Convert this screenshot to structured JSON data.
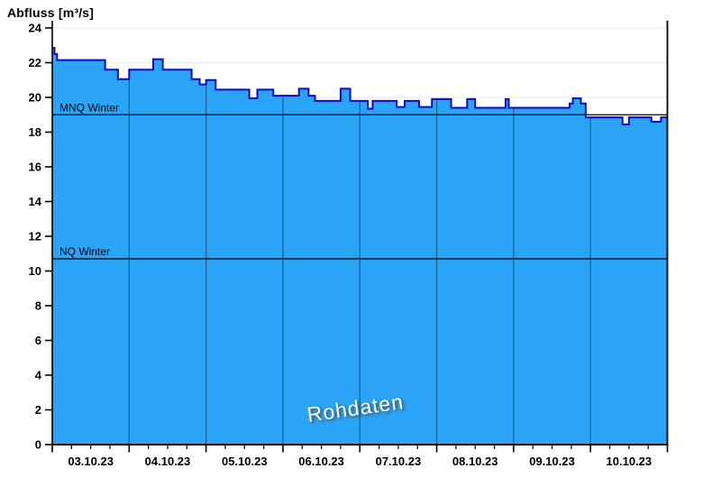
{
  "title": "Abfluss [m³/s]",
  "watermark": "Rohdaten",
  "chart_data": {
    "type": "area",
    "title": "Abfluss [m³/s]",
    "ylabel": "Abfluss [m³/s]",
    "xlabel": "",
    "ylim": [
      0,
      24
    ],
    "y_ticks": [
      0,
      2,
      4,
      6,
      8,
      10,
      12,
      14,
      16,
      18,
      20,
      22,
      24
    ],
    "x_day_labels": [
      "03.10.23",
      "04.10.23",
      "05.10.23",
      "06.10.23",
      "07.10.23",
      "08.10.23",
      "09.10.23",
      "10.10.23"
    ],
    "hours_total": 192,
    "minor_tick_hours": 6,
    "grid": true,
    "legend": false,
    "series": [
      {
        "name": "Abfluss Rohdaten",
        "unit": "m³/s",
        "step_points_hours_value": [
          [
            0,
            22.85
          ],
          [
            0.7,
            22.5
          ],
          [
            1.5,
            22.15
          ],
          [
            16.5,
            21.6
          ],
          [
            20.5,
            21.05
          ],
          [
            24,
            21.6
          ],
          [
            31.5,
            22.2
          ],
          [
            34.5,
            21.6
          ],
          [
            43.5,
            21.05
          ],
          [
            46,
            20.75
          ],
          [
            48,
            21.0
          ],
          [
            51,
            20.45
          ],
          [
            61.5,
            19.95
          ],
          [
            64,
            20.45
          ],
          [
            69,
            20.1
          ],
          [
            77,
            20.5
          ],
          [
            80,
            20.1
          ],
          [
            82,
            19.8
          ],
          [
            90,
            20.5
          ],
          [
            93,
            19.8
          ],
          [
            98.5,
            19.35
          ],
          [
            100,
            19.8
          ],
          [
            107.5,
            19.45
          ],
          [
            110,
            19.8
          ],
          [
            114.5,
            19.45
          ],
          [
            118.5,
            19.9
          ],
          [
            124.5,
            19.4
          ],
          [
            129.5,
            19.9
          ],
          [
            132,
            19.4
          ],
          [
            141.5,
            19.9
          ],
          [
            142.5,
            19.4
          ],
          [
            161.5,
            19.65
          ],
          [
            162.5,
            19.95
          ],
          [
            165,
            19.65
          ],
          [
            166.5,
            18.85
          ],
          [
            178,
            18.45
          ],
          [
            180,
            18.85
          ],
          [
            187,
            18.6
          ],
          [
            190,
            18.85
          ]
        ]
      }
    ],
    "reference_lines": [
      {
        "label": "MNQ Winter",
        "value": 19.0
      },
      {
        "label": "NQ Winter",
        "value": 10.7
      }
    ],
    "colors": {
      "area_fill": "#2AA4F6",
      "area_line": "#0B0BCE",
      "grid_horizontal": "#ECECEC",
      "grid_day_over_area": "rgba(0,0,0,0.42)",
      "axis": "#000000",
      "reference_line": "#000000",
      "watermark_text": "#FFFFFF",
      "background": "#FFFFFF"
    }
  }
}
